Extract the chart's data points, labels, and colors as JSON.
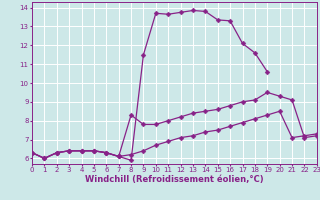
{
  "bg_color": "#cde8e8",
  "grid_color": "#ffffff",
  "line_color": "#882288",
  "markersize": 2.5,
  "linewidth": 0.9,
  "x_label": "Windchill (Refroidissement éolien,°C)",
  "x_label_fontsize": 6,
  "y_ticks": [
    6,
    7,
    8,
    9,
    10,
    11,
    12,
    13,
    14
  ],
  "x_ticks": [
    0,
    1,
    2,
    3,
    4,
    5,
    6,
    7,
    8,
    9,
    10,
    11,
    12,
    13,
    14,
    15,
    16,
    17,
    18,
    19,
    20,
    21,
    22,
    23
  ],
  "xlim": [
    0,
    23
  ],
  "ylim": [
    5.7,
    14.3
  ],
  "tick_fontsize": 5,
  "series": [
    {
      "x": [
        0,
        1,
        2,
        3,
        4,
        5,
        6,
        7,
        8,
        9,
        10,
        11,
        12,
        13,
        14,
        15,
        16,
        17,
        18,
        19,
        20,
        21,
        22,
        23
      ],
      "y": [
        6.3,
        6.0,
        6.3,
        6.4,
        6.4,
        6.4,
        6.3,
        6.1,
        5.9,
        11.5,
        13.7,
        13.65,
        13.75,
        13.85,
        13.8,
        13.35,
        13.3,
        12.1,
        11.6,
        10.6,
        null,
        null,
        null,
        null
      ]
    },
    {
      "x": [
        0,
        1,
        2,
        3,
        4,
        5,
        6,
        7,
        8,
        9,
        10,
        11,
        12,
        13,
        14,
        15,
        16,
        17,
        18,
        19,
        20,
        21,
        22,
        23
      ],
      "y": [
        6.3,
        6.0,
        6.3,
        6.4,
        6.4,
        6.4,
        6.3,
        6.1,
        8.3,
        7.8,
        7.8,
        8.0,
        8.2,
        8.4,
        8.5,
        8.6,
        8.8,
        9.0,
        9.1,
        9.5,
        9.3,
        9.1,
        7.1,
        7.2
      ]
    },
    {
      "x": [
        0,
        1,
        2,
        3,
        4,
        5,
        6,
        7,
        8,
        9,
        10,
        11,
        12,
        13,
        14,
        15,
        16,
        17,
        18,
        19,
        20,
        21,
        22,
        23
      ],
      "y": [
        6.3,
        6.0,
        6.3,
        6.4,
        6.4,
        6.4,
        6.3,
        6.1,
        6.2,
        6.4,
        6.7,
        6.9,
        7.1,
        7.2,
        7.4,
        7.5,
        7.7,
        7.9,
        8.1,
        8.3,
        8.5,
        7.1,
        7.2,
        7.3
      ]
    }
  ]
}
